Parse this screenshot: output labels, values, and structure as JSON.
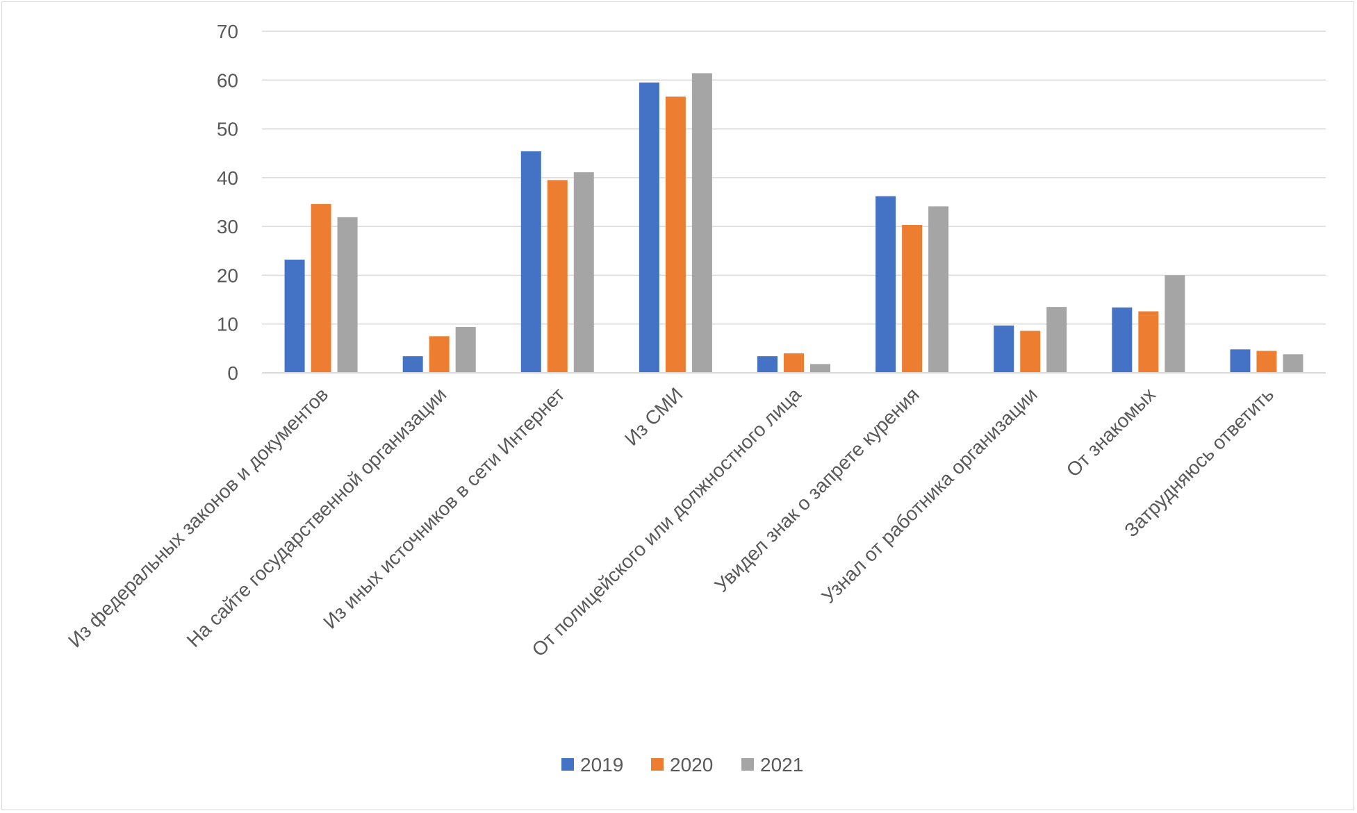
{
  "chart_data": {
    "type": "bar",
    "title": "",
    "xlabel": "",
    "ylabel": "",
    "ylim": [
      0,
      70
    ],
    "yticks": [
      0,
      10,
      20,
      30,
      40,
      50,
      60,
      70
    ],
    "grid": true,
    "legend_position": "bottom",
    "categories": [
      "Из федеральных законов и   документов",
      "На сайте государственной организации",
      "Из иных источников в сети Интернет",
      "Из СМИ",
      "От полицейского или  должностного лица",
      "Увидел знак о запрете курения",
      "Узнал от работника организации",
      "От знакомых",
      "Затрудняюсь ответить"
    ],
    "series": [
      {
        "name": "2019",
        "color": "#4472c4",
        "values": [
          23.2,
          3.4,
          45.4,
          59.5,
          3.4,
          36.2,
          9.7,
          13.4,
          4.8
        ]
      },
      {
        "name": "2020",
        "color": "#ed7d31",
        "values": [
          34.6,
          7.5,
          39.5,
          56.6,
          4.0,
          30.3,
          8.6,
          12.6,
          4.5
        ]
      },
      {
        "name": "2021",
        "color": "#a5a5a5",
        "values": [
          31.9,
          9.4,
          41.1,
          61.4,
          1.8,
          34.1,
          13.5,
          20.0,
          3.8
        ]
      }
    ]
  }
}
